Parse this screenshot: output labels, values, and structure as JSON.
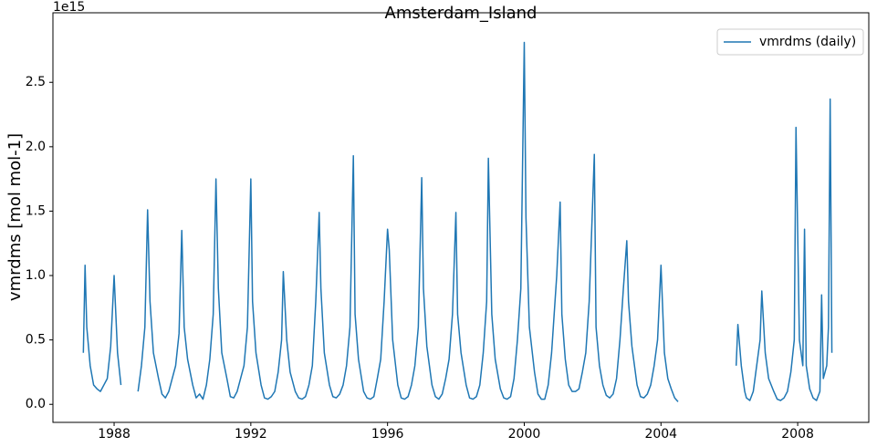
{
  "chart_data": {
    "type": "line",
    "title": "Amsterdam_Island",
    "y_label": "vmrdms [mol mol-1]",
    "y_offset_label": "1e15",
    "x": [
      1987.1,
      1987.15,
      1987.2,
      1987.3,
      1987.4,
      1987.5,
      1987.6,
      1987.7,
      1987.8,
      1987.9,
      1988.0,
      1988.1,
      1988.2,
      1988.45,
      1988.7,
      1988.8,
      1988.9,
      1988.98,
      1989.05,
      1989.15,
      1989.3,
      1989.4,
      1989.5,
      1989.6,
      1989.7,
      1989.8,
      1989.9,
      1989.98,
      1990.05,
      1990.15,
      1990.3,
      1990.4,
      1990.5,
      1990.6,
      1990.7,
      1990.8,
      1990.9,
      1990.98,
      1991.05,
      1991.15,
      1991.3,
      1991.4,
      1991.5,
      1991.6,
      1991.7,
      1991.8,
      1991.9,
      1992.0,
      1992.05,
      1992.15,
      1992.3,
      1992.4,
      1992.5,
      1992.6,
      1992.7,
      1992.8,
      1992.9,
      1992.95,
      1993.05,
      1993.15,
      1993.3,
      1993.4,
      1993.5,
      1993.6,
      1993.7,
      1993.8,
      1993.9,
      1994.0,
      1994.05,
      1994.15,
      1994.3,
      1994.4,
      1994.5,
      1994.6,
      1994.7,
      1994.8,
      1994.9,
      1995.0,
      1995.05,
      1995.15,
      1995.3,
      1995.4,
      1995.5,
      1995.6,
      1995.7,
      1995.8,
      1995.9,
      1996.0,
      1996.05,
      1996.15,
      1996.3,
      1996.4,
      1996.5,
      1996.6,
      1996.7,
      1996.8,
      1996.9,
      1997.0,
      1997.05,
      1997.15,
      1997.3,
      1997.4,
      1997.5,
      1997.6,
      1997.7,
      1997.8,
      1997.9,
      1998.0,
      1998.05,
      1998.15,
      1998.3,
      1998.4,
      1998.5,
      1998.6,
      1998.7,
      1998.8,
      1998.9,
      1998.95,
      1999.05,
      1999.15,
      1999.3,
      1999.4,
      1999.5,
      1999.6,
      1999.7,
      1999.8,
      1999.9,
      2000.0,
      2000.05,
      2000.15,
      2000.3,
      2000.4,
      2000.5,
      2000.6,
      2000.7,
      2000.8,
      2000.9,
      2000.95,
      2001.05,
      2001.1,
      2001.2,
      2001.3,
      2001.4,
      2001.5,
      2001.6,
      2001.7,
      2001.8,
      2001.9,
      2002.05,
      2002.1,
      2002.2,
      2002.3,
      2002.4,
      2002.5,
      2002.6,
      2002.7,
      2002.8,
      2002.9,
      2003.0,
      2003.05,
      2003.15,
      2003.3,
      2003.4,
      2003.5,
      2003.6,
      2003.7,
      2003.8,
      2003.9,
      2004.0,
      2004.1,
      2004.2,
      2004.3,
      2004.4,
      2004.5,
      2005.3,
      2006.2,
      2006.25,
      2006.35,
      2006.45,
      2006.5,
      2006.6,
      2006.7,
      2006.8,
      2006.9,
      2006.95,
      2007.05,
      2007.15,
      2007.3,
      2007.4,
      2007.5,
      2007.6,
      2007.7,
      2007.8,
      2007.9,
      2007.95,
      2008.05,
      2008.15,
      2008.2,
      2008.25,
      2008.35,
      2008.45,
      2008.55,
      2008.65,
      2008.7,
      2008.75,
      2008.85,
      2008.9,
      2008.95,
      2009.0
    ],
    "series": [
      {
        "name": "vmrdms (daily)",
        "color": "#1f77b4",
        "values": [
          0.4,
          1.08,
          0.6,
          0.3,
          0.15,
          0.12,
          0.1,
          0.15,
          0.2,
          0.45,
          1.0,
          0.4,
          0.15,
          null,
          0.1,
          0.3,
          0.6,
          1.51,
          0.8,
          0.4,
          0.2,
          0.08,
          0.05,
          0.1,
          0.2,
          0.3,
          0.55,
          1.35,
          0.6,
          0.35,
          0.15,
          0.05,
          0.08,
          0.04,
          0.15,
          0.35,
          0.7,
          1.75,
          0.9,
          0.4,
          0.2,
          0.06,
          0.05,
          0.1,
          0.2,
          0.3,
          0.6,
          1.75,
          0.8,
          0.4,
          0.15,
          0.05,
          0.04,
          0.06,
          0.1,
          0.25,
          0.5,
          1.03,
          0.5,
          0.25,
          0.1,
          0.05,
          0.04,
          0.06,
          0.15,
          0.3,
          0.8,
          1.49,
          0.9,
          0.4,
          0.15,
          0.06,
          0.05,
          0.08,
          0.15,
          0.3,
          0.6,
          1.93,
          0.7,
          0.35,
          0.1,
          0.05,
          0.04,
          0.06,
          0.2,
          0.35,
          0.8,
          1.36,
          1.2,
          0.5,
          0.15,
          0.05,
          0.04,
          0.06,
          0.15,
          0.3,
          0.6,
          1.76,
          0.9,
          0.45,
          0.15,
          0.06,
          0.04,
          0.08,
          0.2,
          0.35,
          0.7,
          1.49,
          0.7,
          0.4,
          0.15,
          0.05,
          0.04,
          0.06,
          0.15,
          0.4,
          0.8,
          1.91,
          0.7,
          0.35,
          0.12,
          0.05,
          0.04,
          0.06,
          0.2,
          0.5,
          0.9,
          2.81,
          1.45,
          0.6,
          0.25,
          0.08,
          0.04,
          0.04,
          0.15,
          0.4,
          0.8,
          1.0,
          1.57,
          0.7,
          0.35,
          0.15,
          0.1,
          0.1,
          0.12,
          0.25,
          0.4,
          0.8,
          1.94,
          0.6,
          0.3,
          0.15,
          0.07,
          0.05,
          0.08,
          0.2,
          0.5,
          0.9,
          1.27,
          0.8,
          0.45,
          0.15,
          0.06,
          0.05,
          0.08,
          0.15,
          0.3,
          0.5,
          1.08,
          0.4,
          0.2,
          0.12,
          0.05,
          0.02,
          null,
          0.3,
          0.62,
          0.3,
          0.1,
          0.05,
          0.03,
          0.1,
          0.3,
          0.5,
          0.88,
          0.4,
          0.2,
          0.1,
          0.04,
          0.03,
          0.05,
          0.1,
          0.25,
          0.5,
          2.15,
          0.5,
          0.3,
          1.36,
          0.3,
          0.12,
          0.05,
          0.03,
          0.1,
          0.85,
          0.2,
          0.3,
          0.6,
          2.37,
          0.4
        ]
      }
    ],
    "xlim": [
      1986.21,
      2010.08
    ],
    "xticks": [
      1988,
      1992,
      1996,
      2000,
      2004,
      2008
    ],
    "ylim": [
      -0.14,
      3.04
    ],
    "yticks": [
      {
        "value": 0,
        "label": "0.0"
      },
      0.5,
      {
        "value": 1,
        "label": "1.0"
      },
      1.5,
      {
        "value": 2,
        "label": "2.0"
      },
      2.5
    ],
    "legend": "upper right"
  }
}
